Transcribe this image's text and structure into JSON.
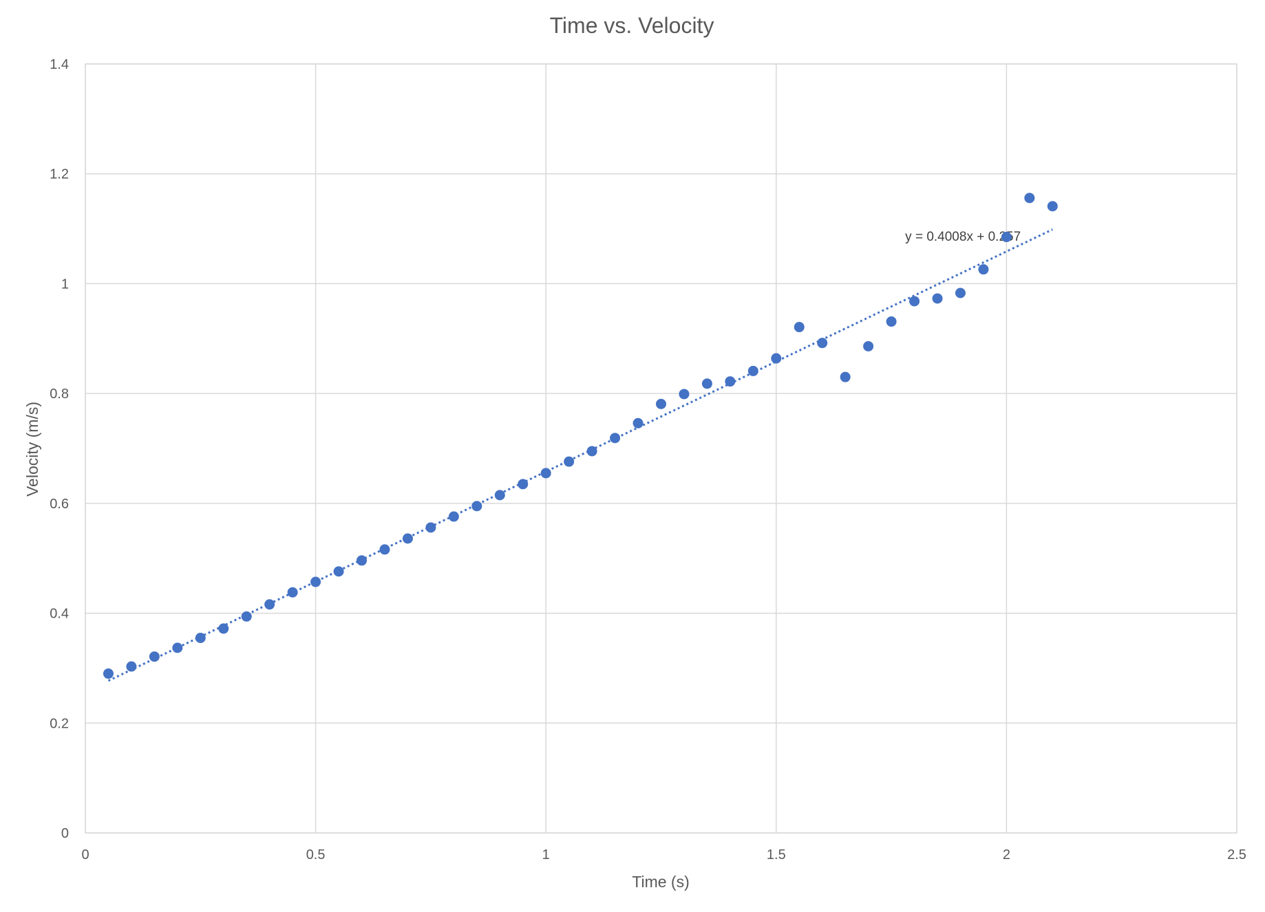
{
  "chart_data": {
    "type": "scatter",
    "title": "Time vs. Velocity",
    "xlabel": "Time (s)",
    "ylabel": "Velocity (m/s)",
    "xlim": [
      0,
      2.5
    ],
    "ylim": [
      0,
      1.4
    ],
    "x_ticks": [
      0,
      0.5,
      1,
      1.5,
      2,
      2.5
    ],
    "x_tick_labels": [
      "0",
      "0.5",
      "1",
      "1.5",
      "2",
      "2.5"
    ],
    "y_ticks": [
      0,
      0.2,
      0.4,
      0.6,
      0.8,
      1,
      1.2,
      1.4
    ],
    "y_tick_labels": [
      "0",
      "0.2",
      "0.4",
      "0.6",
      "0.8",
      "1",
      "1.2",
      "1.4"
    ],
    "grid": true,
    "legend": "none",
    "marker_color": "#4472c4",
    "trend_color": "#4472c4",
    "grid_color": "#d9d9d9",
    "series": [
      {
        "x": [
          0.05,
          0.1,
          0.15,
          0.2,
          0.25,
          0.3,
          0.35,
          0.4,
          0.45,
          0.5,
          0.55,
          0.6,
          0.65,
          0.7,
          0.75,
          0.8,
          0.85,
          0.9,
          0.95,
          1.0,
          1.05,
          1.1,
          1.15,
          1.2,
          1.25,
          1.3,
          1.35,
          1.4,
          1.45,
          1.5,
          1.55,
          1.6,
          1.65,
          1.7,
          1.75,
          1.8,
          1.85,
          1.9,
          1.95,
          2.0,
          2.05,
          2.1
        ],
        "y": [
          0.29,
          0.303,
          0.321,
          0.337,
          0.355,
          0.372,
          0.394,
          0.416,
          0.438,
          0.457,
          0.476,
          0.496,
          0.516,
          0.536,
          0.556,
          0.576,
          0.595,
          0.615,
          0.635,
          0.655,
          0.676,
          0.695,
          0.719,
          0.746,
          0.781,
          0.799,
          0.818,
          0.822,
          0.841,
          0.864,
          0.921,
          0.892,
          0.83,
          0.886,
          0.931,
          0.968,
          0.973,
          0.983,
          1.026,
          1.085,
          1.156,
          1.141
        ]
      }
    ],
    "trendline": {
      "type": "linear",
      "slope": 0.4008,
      "intercept": 0.257,
      "x_range": [
        0.05,
        2.1
      ],
      "equation": "y = 0.4008x + 0.257"
    }
  }
}
